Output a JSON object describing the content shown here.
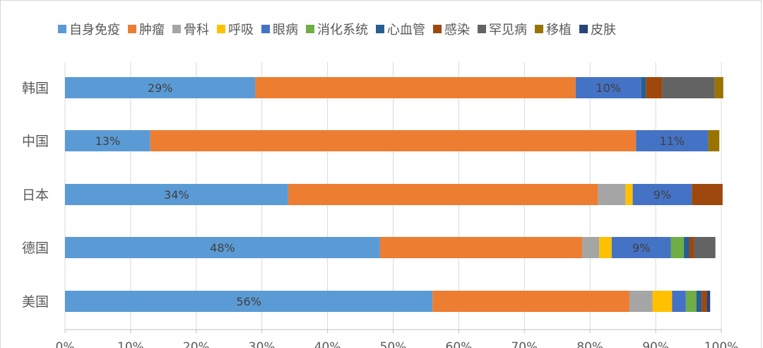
{
  "chart_data": {
    "type": "bar",
    "orientation": "horizontal",
    "stacked": "percent",
    "title": "",
    "xlabel": "",
    "ylabel": "",
    "xlim": [
      0,
      100
    ],
    "x_ticks": [
      "0%",
      "10%",
      "20%",
      "30%",
      "40%",
      "50%",
      "60%",
      "70%",
      "80%",
      "90%",
      "100%"
    ],
    "grid": true,
    "legend_position": "top",
    "categories": [
      "韩国",
      "中国",
      "日本",
      "德国",
      "美国"
    ],
    "series": [
      {
        "name": "自身免疫",
        "color": "#5b9bd5",
        "values": [
          29,
          13,
          34,
          48,
          56
        ],
        "labels": [
          "29%",
          "13%",
          "34%",
          "48%",
          "56%"
        ]
      },
      {
        "name": "肿瘤",
        "color": "#ed7d31",
        "values": [
          48.8,
          74,
          47.2,
          30.8,
          30
        ],
        "labels": [
          "",
          "",
          "",
          "",
          ""
        ]
      },
      {
        "name": "骨科",
        "color": "#a5a5a5",
        "values": [
          0,
          0,
          4.2,
          2.6,
          3.5
        ],
        "labels": [
          "",
          "",
          "",
          "",
          ""
        ]
      },
      {
        "name": "呼吸",
        "color": "#ffc000",
        "values": [
          0,
          0,
          1.1,
          1.9,
          3.0
        ],
        "labels": [
          "",
          "",
          "",
          "",
          ""
        ]
      },
      {
        "name": "眼病",
        "color": "#4472c4",
        "values": [
          10,
          11,
          9,
          9,
          2.1
        ],
        "labels": [
          "10%",
          "11%",
          "9%",
          "9%",
          ""
        ]
      },
      {
        "name": "消化系统",
        "color": "#70ad47",
        "values": [
          0,
          0,
          0,
          2.0,
          1.6
        ],
        "labels": [
          "",
          "",
          "",
          "",
          ""
        ]
      },
      {
        "name": "心血管",
        "color": "#255e91",
        "values": [
          0.7,
          0,
          0,
          0.8,
          0.8
        ],
        "labels": [
          "",
          "",
          "",
          "",
          ""
        ]
      },
      {
        "name": "感染",
        "color": "#9e480e",
        "values": [
          2.5,
          0,
          4.7,
          0.7,
          0.8
        ],
        "labels": [
          "",
          "",
          "",
          "",
          ""
        ]
      },
      {
        "name": "罕见病",
        "color": "#636363",
        "values": [
          8,
          0,
          0,
          3.3,
          0
        ],
        "labels": [
          "",
          "",
          "",
          "",
          ""
        ]
      },
      {
        "name": "移植",
        "color": "#997300",
        "values": [
          1.3,
          1.7,
          0,
          0,
          0
        ],
        "labels": [
          "",
          "",
          "",
          "",
          ""
        ]
      },
      {
        "name": "皮肤",
        "color": "#264478",
        "values": [
          0,
          0,
          0,
          0,
          0.5
        ],
        "labels": [
          "",
          "",
          "",
          "",
          ""
        ]
      }
    ]
  }
}
